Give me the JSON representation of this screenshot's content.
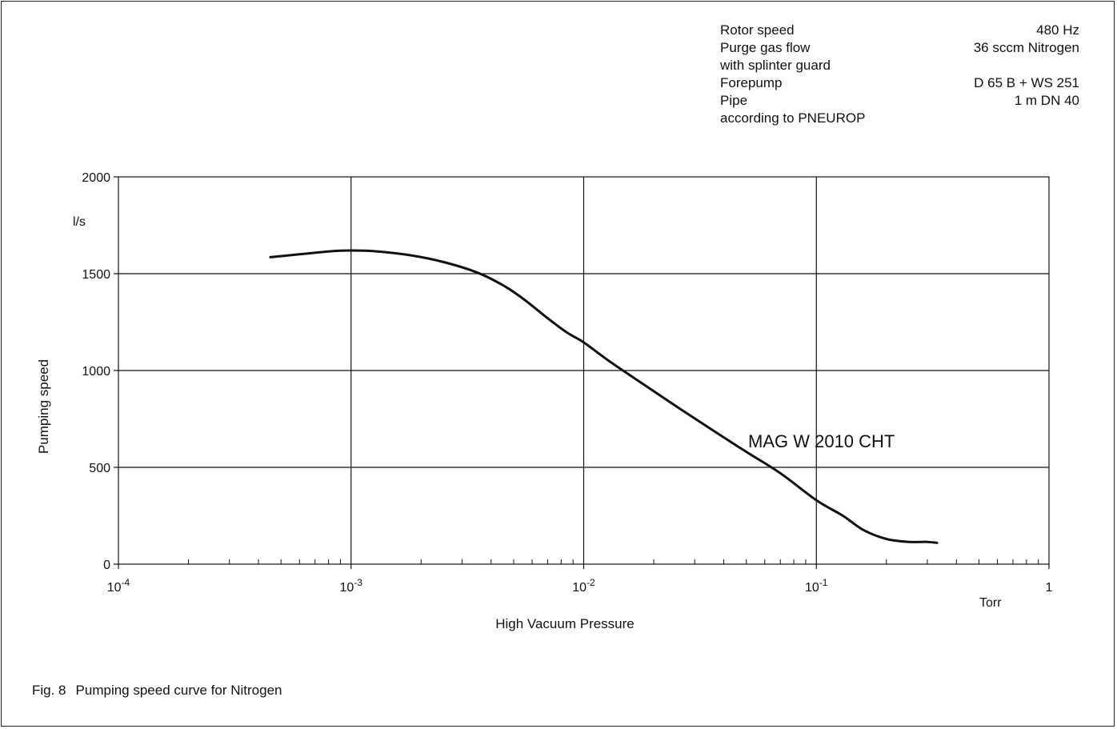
{
  "specs": [
    {
      "label": "Rotor speed",
      "value": "480 Hz"
    },
    {
      "label": "Purge gas flow",
      "value": "36 sccm Nitrogen"
    },
    {
      "label": "with splinter guard",
      "value": ""
    },
    {
      "label": "Forepump",
      "value": "D 65 B + WS 251"
    },
    {
      "label": "Pipe",
      "value": "1 m DN 40"
    },
    {
      "label": "according to PNEUROP",
      "value": ""
    }
  ],
  "caption": {
    "number": "Fig. 8",
    "text": "Pumping speed curve for Nitrogen"
  },
  "chart_data": {
    "type": "line",
    "title": "",
    "xlabel": "High Vacuum Pressure",
    "x_unit": "Torr",
    "xscale": "log",
    "xlim": [
      0.0001,
      1
    ],
    "x_ticks": [
      {
        "value": 0.0001,
        "base": "10",
        "exp": "-4"
      },
      {
        "value": 0.001,
        "base": "10",
        "exp": "-3"
      },
      {
        "value": 0.01,
        "base": "10",
        "exp": "-2"
      },
      {
        "value": 0.1,
        "base": "10",
        "exp": "-1"
      },
      {
        "value": 1,
        "base": "1",
        "exp": ""
      }
    ],
    "ylabel": "Pumping speed",
    "y_unit": "l/s",
    "ylim": [
      0,
      2000
    ],
    "y_ticks": [
      0,
      500,
      1000,
      1500,
      2000
    ],
    "grid": true,
    "annotation": "MAG W 2010 CHT",
    "series": [
      {
        "name": "MAG W 2010 CHT",
        "x": [
          0.00045,
          0.0006,
          0.0008,
          0.001,
          0.0013,
          0.0018,
          0.0025,
          0.0035,
          0.0045,
          0.0055,
          0.007,
          0.0085,
          0.01,
          0.013,
          0.018,
          0.025,
          0.035,
          0.05,
          0.07,
          0.1,
          0.13,
          0.16,
          0.2,
          0.25,
          0.3,
          0.33
        ],
        "y": [
          1585,
          1600,
          1615,
          1620,
          1615,
          1595,
          1560,
          1505,
          1440,
          1370,
          1270,
          1195,
          1145,
          1045,
          930,
          815,
          700,
          580,
          470,
          330,
          250,
          175,
          130,
          115,
          115,
          110
        ]
      }
    ]
  }
}
